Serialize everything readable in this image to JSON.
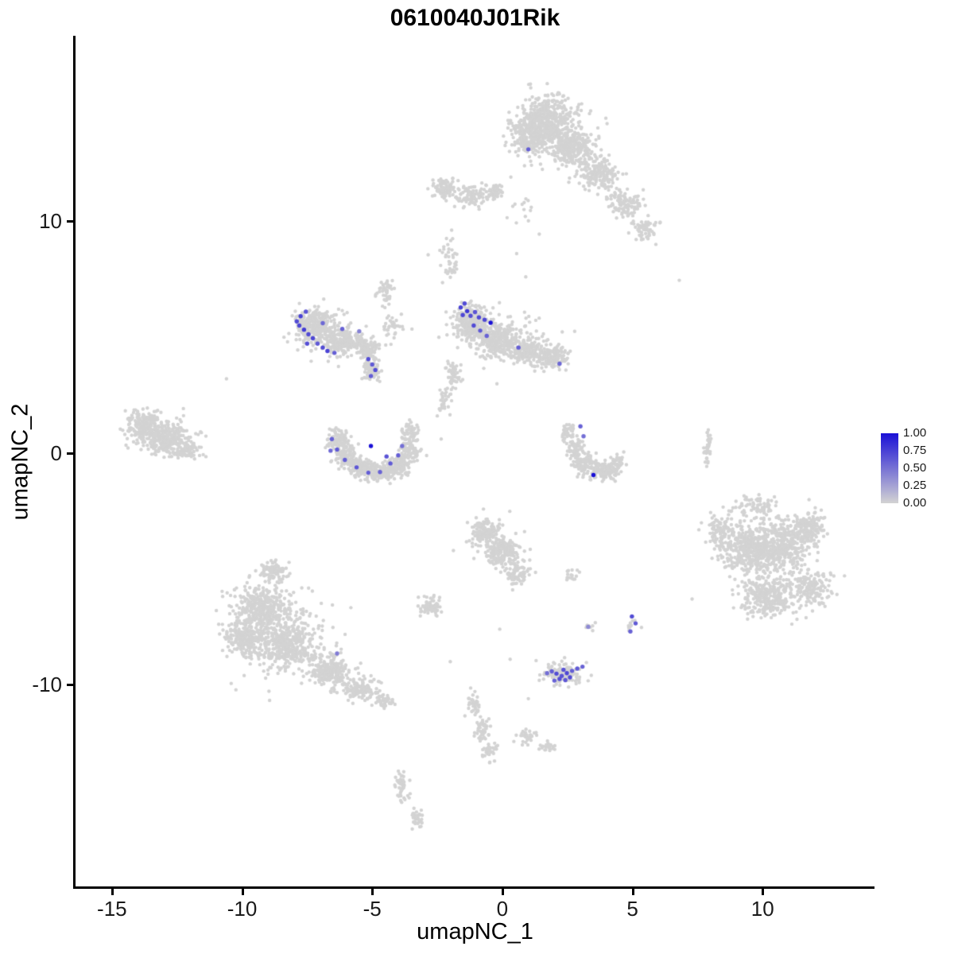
{
  "chart_data": {
    "type": "scatter",
    "title": "0610040J01Rik",
    "xlabel": "umapNC_1",
    "ylabel": "umapNC_2",
    "xlim": [
      -16.4,
      14.3
    ],
    "ylim": [
      -18.7,
      18.0
    ],
    "xticks": [
      -15,
      -10,
      -5,
      0,
      5,
      10
    ],
    "yticks": [
      -10,
      0,
      10
    ],
    "grid": false,
    "background_points_color": "#D3D3D3",
    "legend": {
      "position": "right",
      "ticks": [
        "1.00",
        "0.75",
        "0.50",
        "0.25",
        "0.00"
      ],
      "low_color": "#D3D3D3",
      "high_color": "#1A10D6"
    },
    "clusters": [
      {
        "x": 1.7,
        "y": 14.3,
        "rx": 1.15,
        "ry": 1.25,
        "n": 520
      },
      {
        "x": 2.7,
        "y": 13.2,
        "rx": 0.9,
        "ry": 0.8,
        "n": 240
      },
      {
        "x": 0.9,
        "y": 13.6,
        "rx": 0.6,
        "ry": 0.8,
        "n": 140
      },
      {
        "x": 3.7,
        "y": 12.0,
        "rx": 0.8,
        "ry": 0.8,
        "n": 150
      },
      {
        "x": 4.7,
        "y": 10.8,
        "rx": 0.7,
        "ry": 0.7,
        "n": 110
      },
      {
        "x": 5.4,
        "y": 9.7,
        "rx": 0.5,
        "ry": 0.6,
        "n": 60
      },
      {
        "x": 2.6,
        "y": 13.2,
        "rx": 1.9,
        "ry": 1.6,
        "n": 90
      },
      {
        "x": 0.9,
        "y": 10.4,
        "rx": 0.6,
        "ry": 1.0,
        "n": 14
      },
      {
        "x": -2.2,
        "y": 11.4,
        "rx": 0.6,
        "ry": 0.5,
        "n": 80
      },
      {
        "x": -1.2,
        "y": 11.1,
        "rx": 0.75,
        "ry": 0.5,
        "n": 95
      },
      {
        "x": -0.3,
        "y": 11.3,
        "rx": 0.45,
        "ry": 0.4,
        "n": 45
      },
      {
        "x": -2.0,
        "y": 8.2,
        "rx": 0.4,
        "ry": 1.3,
        "n": 40
      },
      {
        "x": -7.2,
        "y": 5.5,
        "rx": 0.8,
        "ry": 0.75,
        "n": 280
      },
      {
        "x": -6.1,
        "y": 4.8,
        "rx": 0.8,
        "ry": 0.6,
        "n": 220
      },
      {
        "x": -5.2,
        "y": 4.5,
        "rx": 0.5,
        "ry": 0.5,
        "n": 90
      },
      {
        "x": -6.5,
        "y": 5.1,
        "rx": 1.4,
        "ry": 1.1,
        "n": 80
      },
      {
        "x": -5.0,
        "y": 3.6,
        "rx": 0.4,
        "ry": 0.5,
        "n": 70
      },
      {
        "x": -4.5,
        "y": 6.9,
        "rx": 0.35,
        "ry": 0.7,
        "n": 45
      },
      {
        "x": -4.2,
        "y": 5.4,
        "rx": 0.5,
        "ry": 0.6,
        "n": 35
      },
      {
        "x": -1.2,
        "y": 5.6,
        "rx": 0.75,
        "ry": 0.85,
        "n": 280
      },
      {
        "x": -0.2,
        "y": 4.9,
        "rx": 0.85,
        "ry": 0.8,
        "n": 250
      },
      {
        "x": 0.9,
        "y": 4.4,
        "rx": 0.85,
        "ry": 0.6,
        "n": 200
      },
      {
        "x": 1.95,
        "y": 4.1,
        "rx": 0.7,
        "ry": 0.55,
        "n": 130
      },
      {
        "x": 0.2,
        "y": 4.9,
        "rx": 1.9,
        "ry": 1.2,
        "n": 100
      },
      {
        "x": -1.9,
        "y": 3.4,
        "rx": 0.35,
        "ry": 0.7,
        "n": 50
      },
      {
        "x": -2.2,
        "y": 2.3,
        "rx": 0.3,
        "ry": 0.5,
        "n": 30
      },
      {
        "x": -13.8,
        "y": 1.2,
        "rx": 0.75,
        "ry": 0.7,
        "n": 180
      },
      {
        "x": -12.9,
        "y": 0.6,
        "rx": 0.85,
        "ry": 0.8,
        "n": 220
      },
      {
        "x": -12.1,
        "y": 0.1,
        "rx": 0.55,
        "ry": 0.5,
        "n": 80
      },
      {
        "x": -13.1,
        "y": 0.8,
        "rx": 1.5,
        "ry": 1.1,
        "n": 70
      },
      {
        "x": -6.3,
        "y": 0.55,
        "rx": 0.45,
        "ry": 0.6,
        "n": 90
      },
      {
        "x": -6.0,
        "y": -0.15,
        "rx": 0.5,
        "ry": 0.5,
        "n": 110
      },
      {
        "x": -5.4,
        "y": -0.65,
        "rx": 0.6,
        "ry": 0.45,
        "n": 130
      },
      {
        "x": -4.7,
        "y": -0.85,
        "rx": 0.6,
        "ry": 0.4,
        "n": 130
      },
      {
        "x": -4.0,
        "y": -0.55,
        "rx": 0.5,
        "ry": 0.5,
        "n": 110
      },
      {
        "x": -3.6,
        "y": 0.1,
        "rx": 0.4,
        "ry": 0.55,
        "n": 90
      },
      {
        "x": -3.5,
        "y": 0.9,
        "rx": 0.35,
        "ry": 0.4,
        "n": 50
      },
      {
        "x": 2.5,
        "y": 0.9,
        "rx": 0.3,
        "ry": 0.4,
        "n": 40
      },
      {
        "x": 2.8,
        "y": 0.2,
        "rx": 0.35,
        "ry": 0.5,
        "n": 60
      },
      {
        "x": 3.2,
        "y": -0.5,
        "rx": 0.5,
        "ry": 0.5,
        "n": 100
      },
      {
        "x": 3.9,
        "y": -0.8,
        "rx": 0.6,
        "ry": 0.4,
        "n": 120
      },
      {
        "x": 4.4,
        "y": -0.45,
        "rx": 0.3,
        "ry": 0.35,
        "n": 40
      },
      {
        "x": 7.9,
        "y": 0.15,
        "rx": 0.16,
        "ry": 0.9,
        "n": 40
      },
      {
        "x": 9.5,
        "y": -4.2,
        "rx": 1.0,
        "ry": 1.2,
        "n": 330
      },
      {
        "x": 10.8,
        "y": -4.0,
        "rx": 1.0,
        "ry": 1.2,
        "n": 330
      },
      {
        "x": 11.8,
        "y": -3.2,
        "rx": 0.75,
        "ry": 0.8,
        "n": 150
      },
      {
        "x": 10.2,
        "y": -6.2,
        "rx": 1.2,
        "ry": 0.9,
        "n": 290
      },
      {
        "x": 11.8,
        "y": -5.8,
        "rx": 0.8,
        "ry": 0.8,
        "n": 150
      },
      {
        "x": 8.4,
        "y": -3.4,
        "rx": 0.6,
        "ry": 0.85,
        "n": 120
      },
      {
        "x": 9.8,
        "y": -2.3,
        "rx": 1.1,
        "ry": 0.5,
        "n": 70
      },
      {
        "x": 10.4,
        "y": -4.6,
        "rx": 2.2,
        "ry": 1.9,
        "n": 110
      },
      {
        "x": -0.7,
        "y": -3.4,
        "rx": 0.65,
        "ry": 0.6,
        "n": 140
      },
      {
        "x": 0.0,
        "y": -4.3,
        "rx": 0.7,
        "ry": 0.7,
        "n": 160
      },
      {
        "x": 0.6,
        "y": -5.2,
        "rx": 0.5,
        "ry": 0.5,
        "n": 80
      },
      {
        "x": -0.2,
        "y": -4.2,
        "rx": 1.3,
        "ry": 1.3,
        "n": 50
      },
      {
        "x": -2.8,
        "y": -6.6,
        "rx": 0.42,
        "ry": 0.42,
        "n": 70
      },
      {
        "x": 2.65,
        "y": -5.25,
        "rx": 0.25,
        "ry": 0.3,
        "n": 15
      },
      {
        "x": -9.2,
        "y": -6.7,
        "rx": 1.2,
        "ry": 1.2,
        "n": 380
      },
      {
        "x": -8.3,
        "y": -8.3,
        "rx": 1.3,
        "ry": 1.1,
        "n": 380
      },
      {
        "x": -9.9,
        "y": -8.0,
        "rx": 0.8,
        "ry": 0.8,
        "n": 200
      },
      {
        "x": -8.8,
        "y": -5.1,
        "rx": 0.6,
        "ry": 0.5,
        "n": 90
      },
      {
        "x": -6.6,
        "y": -9.4,
        "rx": 0.9,
        "ry": 0.7,
        "n": 220
      },
      {
        "x": -5.5,
        "y": -10.2,
        "rx": 0.8,
        "ry": 0.5,
        "n": 140
      },
      {
        "x": -4.6,
        "y": -10.7,
        "rx": 0.45,
        "ry": 0.35,
        "n": 50
      },
      {
        "x": -8.3,
        "y": -8.0,
        "rx": 2.2,
        "ry": 1.9,
        "n": 110
      },
      {
        "x": 2.3,
        "y": -9.5,
        "rx": 0.85,
        "ry": 0.5,
        "n": 130
      },
      {
        "x": 5.0,
        "y": -7.35,
        "rx": 0.28,
        "ry": 0.4,
        "n": 12
      },
      {
        "x": 3.35,
        "y": -7.55,
        "rx": 0.2,
        "ry": 0.25,
        "n": 8
      },
      {
        "x": -1.1,
        "y": -10.8,
        "rx": 0.3,
        "ry": 0.5,
        "n": 40
      },
      {
        "x": -0.75,
        "y": -11.9,
        "rx": 0.3,
        "ry": 0.6,
        "n": 45
      },
      {
        "x": -0.45,
        "y": -12.9,
        "rx": 0.3,
        "ry": 0.45,
        "n": 30
      },
      {
        "x": 0.9,
        "y": -12.2,
        "rx": 0.5,
        "ry": 0.35,
        "n": 30
      },
      {
        "x": 1.7,
        "y": -12.7,
        "rx": 0.4,
        "ry": 0.3,
        "n": 25
      },
      {
        "x": -3.85,
        "y": -14.3,
        "rx": 0.3,
        "ry": 0.65,
        "n": 45
      },
      {
        "x": -3.3,
        "y": -15.8,
        "rx": 0.28,
        "ry": 0.5,
        "n": 30
      }
    ],
    "gray_singles": [
      [
        -2.85,
        8.55
      ],
      [
        6.8,
        7.45
      ],
      [
        -10.6,
        3.2
      ],
      [
        -2.5,
        1.6
      ],
      [
        -2.35,
        0.6
      ],
      [
        0.55,
        8.6
      ],
      [
        0.9,
        7.6
      ],
      [
        -0.1,
        -7.6
      ],
      [
        0.3,
        -8.9
      ],
      [
        -2.0,
        -9.0
      ],
      [
        1.0,
        -10.6
      ],
      [
        5.9,
        9.0
      ]
    ],
    "expressing_cells": {
      "format": [
        "x",
        "y",
        "value"
      ],
      "points": [
        [
          -7.55,
          6.1,
          0.65
        ],
        [
          -7.75,
          5.9,
          0.75
        ],
        [
          -7.9,
          5.68,
          0.7
        ],
        [
          -7.8,
          5.5,
          0.72
        ],
        [
          -7.62,
          5.32,
          0.78
        ],
        [
          -7.45,
          5.12,
          0.7
        ],
        [
          -7.28,
          4.95,
          0.72
        ],
        [
          -7.5,
          4.72,
          0.68
        ],
        [
          -7.1,
          4.72,
          0.62
        ],
        [
          -6.9,
          4.55,
          0.7
        ],
        [
          -6.72,
          4.4,
          0.74
        ],
        [
          -6.45,
          4.32,
          0.6
        ],
        [
          -6.9,
          5.6,
          0.55
        ],
        [
          -6.15,
          5.35,
          0.58
        ],
        [
          -5.5,
          5.25,
          0.42
        ],
        [
          -5.15,
          4.05,
          0.68
        ],
        [
          -5.0,
          3.82,
          0.62
        ],
        [
          -4.88,
          3.58,
          0.7
        ],
        [
          -5.05,
          3.32,
          0.6
        ],
        [
          -1.45,
          6.45,
          0.7
        ],
        [
          -1.6,
          6.28,
          0.75
        ],
        [
          -1.35,
          6.12,
          0.8
        ],
        [
          -1.52,
          5.95,
          0.72
        ],
        [
          -1.22,
          5.92,
          0.68
        ],
        [
          -1.05,
          6.08,
          0.65
        ],
        [
          -0.9,
          5.85,
          0.7
        ],
        [
          -0.68,
          5.75,
          0.72
        ],
        [
          -0.45,
          5.62,
          1.0
        ],
        [
          -1.1,
          5.5,
          0.7
        ],
        [
          -0.85,
          5.28,
          0.62
        ],
        [
          -0.6,
          5.05,
          0.58
        ],
        [
          0.62,
          4.55,
          0.6
        ],
        [
          2.2,
          3.85,
          0.55
        ],
        [
          -6.55,
          0.6,
          0.58
        ],
        [
          -6.35,
          0.15,
          0.62
        ],
        [
          -6.6,
          0.1,
          0.55
        ],
        [
          -6.05,
          -0.3,
          0.6
        ],
        [
          -5.6,
          -0.62,
          0.64
        ],
        [
          -5.15,
          -0.85,
          0.6
        ],
        [
          -4.7,
          -0.82,
          0.58
        ],
        [
          -4.3,
          -0.45,
          0.62
        ],
        [
          -4.0,
          -0.1,
          0.6
        ],
        [
          -5.05,
          0.3,
          1.0
        ],
        [
          -4.45,
          -0.15,
          0.66
        ],
        [
          -3.85,
          0.3,
          0.52
        ],
        [
          3.0,
          1.15,
          0.58
        ],
        [
          3.12,
          0.72,
          0.52
        ],
        [
          3.5,
          -0.95,
          1.0
        ],
        [
          1.0,
          13.1,
          0.6
        ],
        [
          -6.35,
          -8.65,
          0.45
        ],
        [
          3.3,
          -7.5,
          0.38
        ],
        [
          1.9,
          -9.42,
          0.6
        ],
        [
          2.08,
          -9.52,
          0.7
        ],
        [
          2.28,
          -9.62,
          0.65
        ],
        [
          2.48,
          -9.5,
          0.72
        ],
        [
          2.68,
          -9.4,
          0.6
        ],
        [
          2.2,
          -9.75,
          0.68
        ],
        [
          2.42,
          -9.8,
          0.64
        ],
        [
          2.0,
          -9.82,
          0.58
        ],
        [
          2.6,
          -9.68,
          0.7
        ],
        [
          2.88,
          -9.3,
          0.62
        ],
        [
          3.08,
          -9.22,
          0.58
        ],
        [
          1.72,
          -9.5,
          0.52
        ],
        [
          2.35,
          -9.35,
          0.66
        ],
        [
          4.98,
          -7.05,
          0.7
        ],
        [
          5.12,
          -7.35,
          0.62
        ],
        [
          4.92,
          -7.7,
          0.58
        ]
      ]
    }
  }
}
